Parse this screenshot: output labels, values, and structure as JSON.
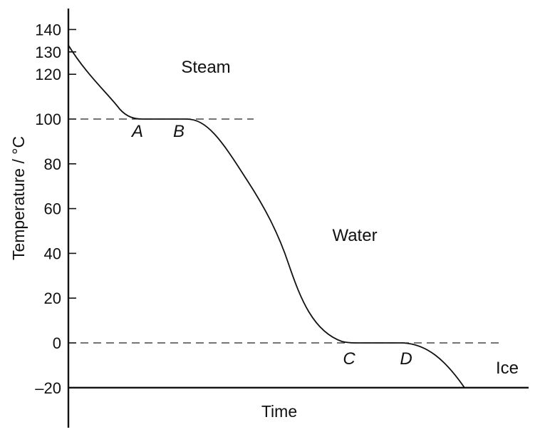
{
  "chart_data": {
    "type": "line",
    "title": "",
    "xlabel": "Time",
    "ylabel": "Temperature / °C",
    "ylim": [
      -20,
      145
    ],
    "y_ticks": [
      {
        "value": -20,
        "label": "–20"
      },
      {
        "value": 0,
        "label": "0"
      },
      {
        "value": 20,
        "label": "20"
      },
      {
        "value": 40,
        "label": "40"
      },
      {
        "value": 60,
        "label": "60"
      },
      {
        "value": 80,
        "label": "80"
      },
      {
        "value": 100,
        "label": "100"
      },
      {
        "value": 120,
        "label": "120"
      },
      {
        "value": 130,
        "label": "130"
      },
      {
        "value": 140,
        "label": "140"
      }
    ],
    "reference_lines": [
      {
        "y": 100,
        "style": "dashed"
      },
      {
        "y": 0,
        "style": "dashed"
      }
    ],
    "region_labels": [
      "Steam",
      "Water",
      "Ice"
    ],
    "point_labels": [
      "A",
      "B",
      "C",
      "D"
    ],
    "segments": [
      {
        "phase": "Steam cooling",
        "from_temp": 133,
        "to_temp": 100
      },
      {
        "phase": "Condensation A–B",
        "from_temp": 100,
        "to_temp": 100
      },
      {
        "phase": "Water cooling",
        "from_temp": 100,
        "to_temp": 0
      },
      {
        "phase": "Freezing C–D",
        "from_temp": 0,
        "to_temp": 0
      },
      {
        "phase": "Ice cooling",
        "from_temp": 0,
        "to_temp": -20
      }
    ],
    "grid": false,
    "legend": "none"
  }
}
